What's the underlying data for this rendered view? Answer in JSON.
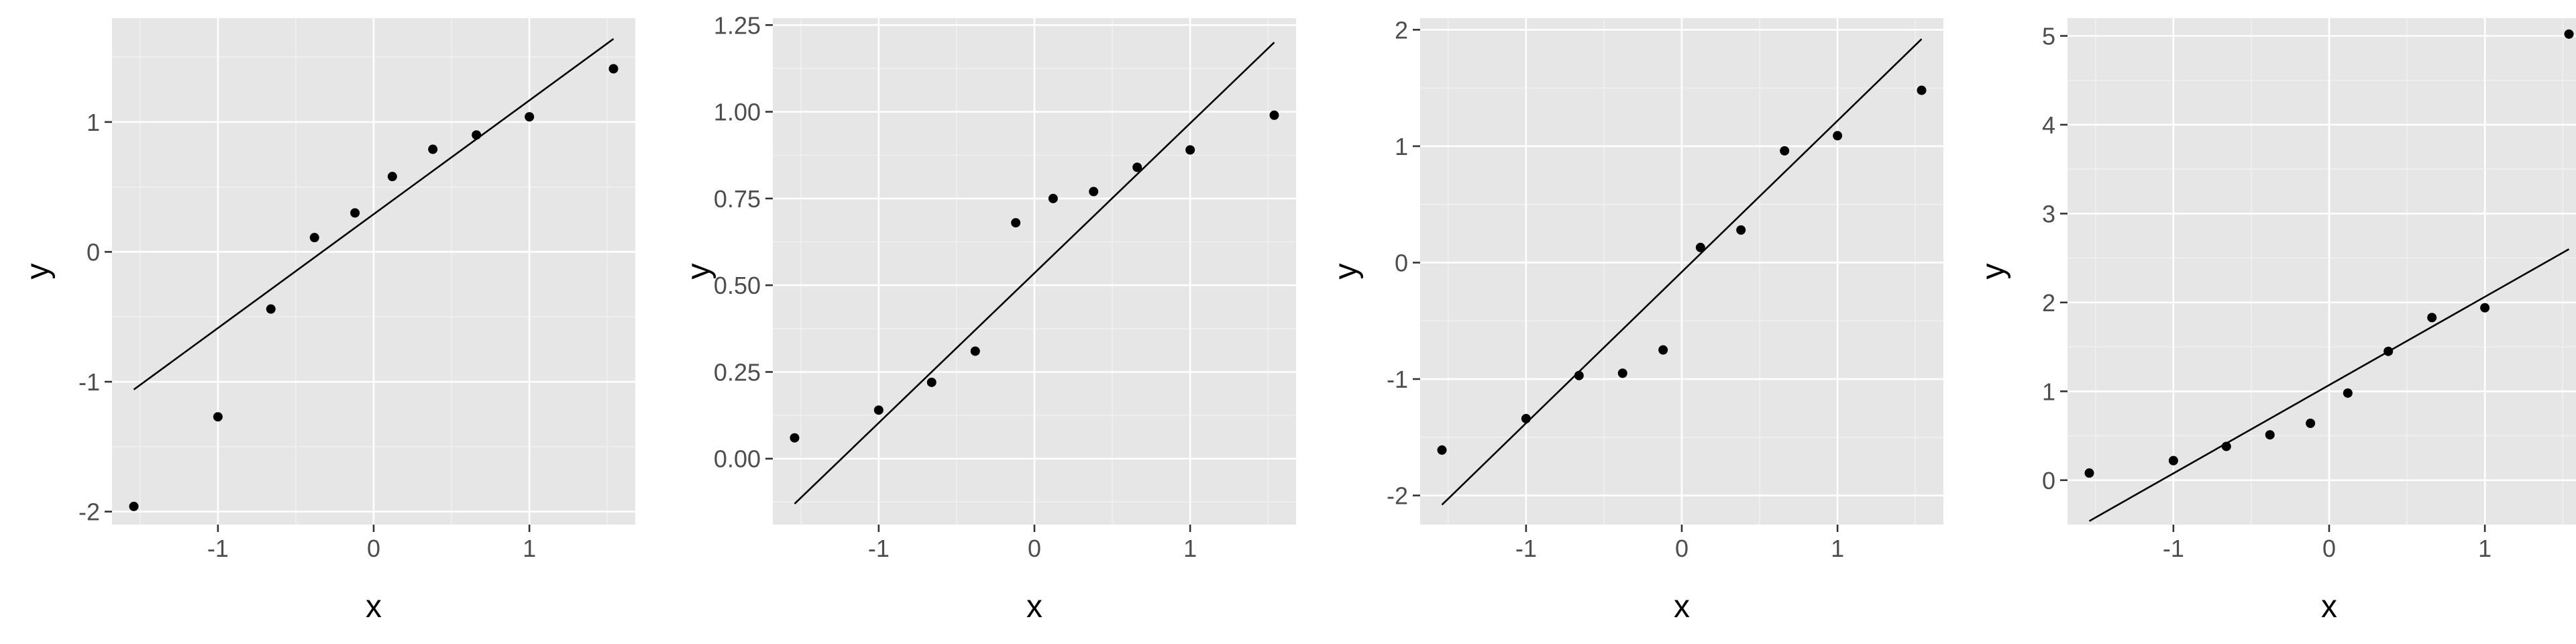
{
  "chart_data": [
    {
      "type": "scatter",
      "xlabel": "x",
      "ylabel": "y",
      "xlim": [
        -1.68,
        1.68
      ],
      "ylim": [
        -2.1,
        1.8
      ],
      "x_ticks": [
        -1,
        0,
        1
      ],
      "x_tick_labels": [
        "-1",
        "0",
        "1"
      ],
      "y_ticks": [
        -2,
        -1,
        0,
        1
      ],
      "y_tick_labels": [
        "-2",
        "-1",
        "0",
        "1"
      ],
      "grid": true,
      "points": {
        "x": [
          -1.54,
          -1.0,
          -0.66,
          -0.38,
          -0.12,
          0.12,
          0.38,
          0.66,
          1.0,
          1.54
        ],
        "y": [
          -1.96,
          -1.27,
          -0.44,
          0.11,
          0.3,
          0.58,
          0.79,
          0.9,
          1.04,
          1.41
        ]
      },
      "reference_line": {
        "x": [
          -1.54,
          1.54
        ],
        "y": [
          -1.06,
          1.64
        ]
      }
    },
    {
      "type": "scatter",
      "xlabel": "x",
      "ylabel": "y",
      "xlim": [
        -1.68,
        1.68
      ],
      "ylim": [
        -0.19,
        1.27
      ],
      "x_ticks": [
        -1,
        0,
        1
      ],
      "x_tick_labels": [
        "-1",
        "0",
        "1"
      ],
      "y_ticks": [
        0,
        0.25,
        0.5,
        0.75,
        1.0,
        1.25
      ],
      "y_tick_labels": [
        "0.00",
        "0.25",
        "0.50",
        "0.75",
        "1.00",
        "1.25"
      ],
      "grid": true,
      "points": {
        "x": [
          -1.54,
          -1.0,
          -0.66,
          -0.38,
          -0.12,
          0.12,
          0.38,
          0.66,
          1.0,
          1.54
        ],
        "y": [
          0.06,
          0.14,
          0.22,
          0.31,
          0.68,
          0.75,
          0.77,
          0.84,
          0.89,
          0.99
        ]
      },
      "reference_line": {
        "x": [
          -1.54,
          1.54
        ],
        "y": [
          -0.13,
          1.2
        ]
      }
    },
    {
      "type": "scatter",
      "xlabel": "x",
      "ylabel": "y",
      "xlim": [
        -1.68,
        1.68
      ],
      "ylim": [
        -2.25,
        2.1
      ],
      "x_ticks": [
        -1,
        0,
        1
      ],
      "x_tick_labels": [
        "-1",
        "0",
        "1"
      ],
      "y_ticks": [
        -2,
        -1,
        0,
        1,
        2
      ],
      "y_tick_labels": [
        "-2",
        "-1",
        "0",
        "1",
        "2"
      ],
      "grid": true,
      "points": {
        "x": [
          -1.54,
          -1.0,
          -0.66,
          -0.38,
          -0.12,
          0.12,
          0.38,
          0.66,
          1.0,
          1.54
        ],
        "y": [
          -1.61,
          -1.34,
          -0.97,
          -0.95,
          -0.75,
          0.13,
          0.28,
          0.96,
          1.09,
          1.48
        ]
      },
      "reference_line": {
        "x": [
          -1.54,
          1.54
        ],
        "y": [
          -2.08,
          1.92
        ]
      }
    },
    {
      "type": "scatter",
      "xlabel": "x",
      "ylabel": "y",
      "xlim": [
        -1.68,
        1.68
      ],
      "ylim": [
        -0.5,
        5.2
      ],
      "x_ticks": [
        -1,
        0,
        1
      ],
      "x_tick_labels": [
        "-1",
        "0",
        "1"
      ],
      "y_ticks": [
        0,
        1,
        2,
        3,
        4,
        5
      ],
      "y_tick_labels": [
        "0",
        "1",
        "2",
        "3",
        "4",
        "5"
      ],
      "grid": true,
      "points": {
        "x": [
          -1.54,
          -1.0,
          -0.66,
          -0.38,
          -0.12,
          0.12,
          0.38,
          0.66,
          1.0,
          1.54
        ],
        "y": [
          0.08,
          0.22,
          0.38,
          0.51,
          0.64,
          0.98,
          1.45,
          1.83,
          1.94,
          5.02
        ]
      },
      "reference_line": {
        "x": [
          -1.54,
          1.54
        ],
        "y": [
          -0.46,
          2.6
        ]
      }
    }
  ]
}
